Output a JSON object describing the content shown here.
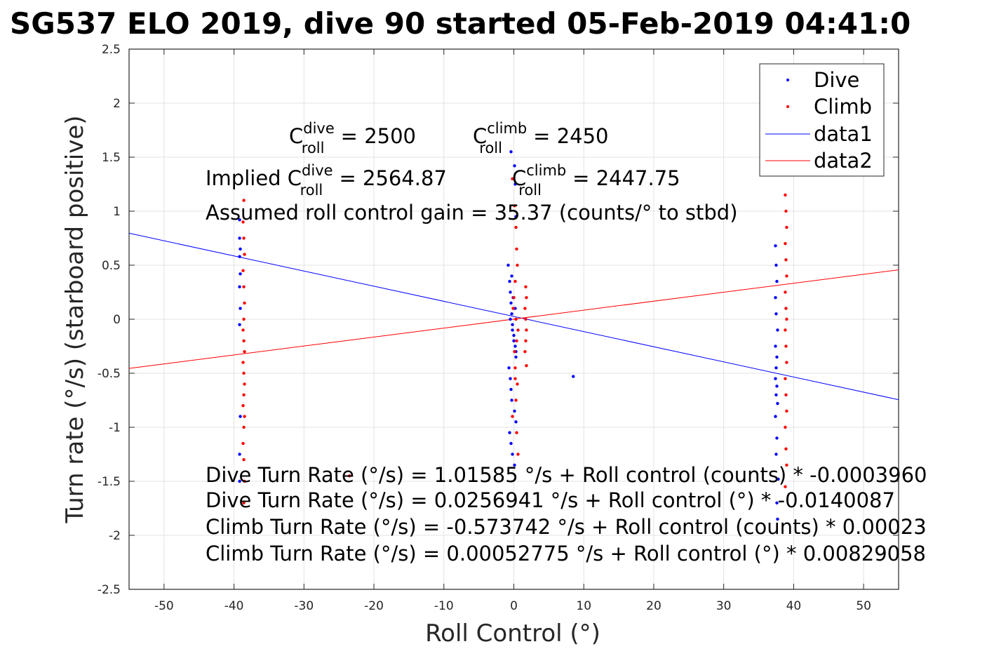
{
  "chart_data": {
    "type": "scatter",
    "title": "SG537 ELO 2019, dive 90 started 05-Feb-2019 04:41:0",
    "xlabel": "Roll Control (°)",
    "ylabel": "Turn rate (°/s) (starboard positive)",
    "xlim": [
      -55,
      55
    ],
    "ylim": [
      -2.5,
      2.5
    ],
    "x_ticks": [
      -50,
      -40,
      -30,
      -20,
      -10,
      0,
      10,
      20,
      30,
      40,
      50
    ],
    "y_ticks": [
      -2.5,
      -2,
      -1.5,
      -1,
      -0.5,
      0,
      0.5,
      1,
      1.5,
      2,
      2.5
    ],
    "grid": true,
    "legend_position": "top-right",
    "legend": [
      "Dive",
      "Climb",
      "data1",
      "data2"
    ],
    "series": [
      {
        "name": "Dive",
        "kind": "points",
        "color": "#0000ff",
        "x": [
          -39.2,
          -39.2,
          -39.1,
          -39.2,
          -39.1,
          -39.2,
          -39.1,
          -39.2,
          -39.1,
          -39.2,
          -39.2,
          -0.8,
          -0.6,
          -0.5,
          -0.4,
          -0.3,
          -0.2,
          0.0,
          0.2,
          0.3,
          -0.7,
          -0.5,
          -0.4,
          -0.3,
          0.1,
          0.3,
          -0.6,
          -0.4,
          -0.2,
          0.1,
          -0.3,
          -0.1,
          0.2,
          -0.5,
          -0.2,
          0.0,
          0.3,
          -0.4,
          0.1,
          0.2,
          0.3,
          8.5,
          37.4,
          37.5,
          37.6,
          37.4,
          37.5,
          37.7,
          37.4,
          37.6,
          37.5,
          37.4,
          37.6,
          37.5,
          37.7,
          37.4,
          37.6,
          37.5,
          37.8,
          37.6,
          37.7
        ],
        "y": [
          0.92,
          0.75,
          0.65,
          0.58,
          0.42,
          0.3,
          0.1,
          -0.05,
          -0.9,
          -1.25,
          -1.5,
          0.5,
          0.35,
          0.25,
          0.15,
          0.05,
          -0.05,
          -0.15,
          -0.25,
          -0.35,
          -0.45,
          -0.55,
          -0.65,
          -0.75,
          -0.85,
          -0.95,
          -1.05,
          -1.15,
          -1.25,
          -1.35,
          0.4,
          0.2,
          0.1,
          0.0,
          -0.1,
          -0.2,
          -0.3,
          1.55,
          1.42,
          1.25,
          0.95,
          -0.53,
          0.68,
          0.5,
          0.35,
          0.2,
          0.05,
          -0.1,
          -0.25,
          -0.35,
          -0.45,
          -0.55,
          -0.62,
          -0.7,
          -0.78,
          -0.9,
          -1.1,
          -1.25,
          -1.48,
          -1.7,
          -1.85
        ]
      },
      {
        "name": "Climb",
        "kind": "points",
        "color": "#ff0000",
        "x": [
          -38.6,
          -38.7,
          -38.6,
          -38.5,
          -38.7,
          -38.6,
          -38.5,
          -38.6,
          -38.7,
          -38.6,
          -38.5,
          -38.7,
          -38.6,
          -38.5,
          -38.6,
          -38.7,
          -38.5,
          -38.6,
          -38.7,
          -38.6,
          -38.5,
          -38.6,
          -23.5,
          -0.2,
          0.1,
          0.3,
          0.4,
          0.5,
          0.2,
          0.0,
          -0.1,
          0.3,
          0.6,
          0.4,
          0.1,
          0.2,
          0.5,
          0.3,
          -0.2,
          0.4,
          0.6,
          0.2,
          1.7,
          1.8,
          1.6,
          1.7,
          1.8,
          1.7,
          1.6,
          1.8,
          38.8,
          38.9,
          39.0,
          38.8,
          38.9,
          39.0,
          38.8,
          38.9,
          39.0,
          38.8,
          38.9,
          39.0,
          38.8,
          38.9,
          39.0,
          38.8,
          38.9,
          39.0,
          38.8
        ],
        "y": [
          1.1,
          0.9,
          0.75,
          0.6,
          0.45,
          0.3,
          0.15,
          0.0,
          -0.1,
          -0.2,
          -0.3,
          -0.4,
          -0.5,
          -0.6,
          -0.7,
          -0.8,
          -0.9,
          -1.0,
          -1.15,
          -1.3,
          -1.5,
          -1.7,
          -1.45,
          1.3,
          1.05,
          0.85,
          0.65,
          0.5,
          0.35,
          0.2,
          0.1,
          0.0,
          -0.1,
          -0.2,
          -0.3,
          -0.45,
          -0.6,
          -0.75,
          -0.9,
          -1.05,
          -1.25,
          -0.55,
          0.3,
          0.2,
          0.1,
          0.0,
          -0.1,
          -0.2,
          -0.3,
          -0.43,
          1.15,
          1.0,
          0.85,
          0.7,
          0.55,
          0.4,
          0.25,
          0.1,
          0.0,
          -0.1,
          -0.25,
          -0.4,
          -0.55,
          -0.7,
          -0.85,
          -1.0,
          -1.2,
          -1.35,
          -1.55
        ]
      },
      {
        "name": "data1",
        "kind": "line",
        "color": "#0000ff",
        "x": [
          -55,
          55
        ],
        "y": [
          0.796,
          -0.745
        ]
      },
      {
        "name": "data2",
        "kind": "line",
        "color": "#ff0000",
        "x": [
          -55,
          55
        ],
        "y": [
          -0.455,
          0.457
        ]
      }
    ],
    "annotations": {
      "dive_label_pre": "C",
      "dive_sup": "dive",
      "dive_sub": "roll",
      "dive_value": " = 2500",
      "climb_label_pre": "C",
      "climb_sup": "climb",
      "climb_sub": "roll",
      "climb_value": " = 2450",
      "implied_prefix": "Implied C",
      "implied_dive_value": " = 2564.87",
      "implied_climb_pre": "C",
      "implied_climb_value": " = 2447.75",
      "gain": "Assumed roll control gain = 35.37 (counts/° to stbd)",
      "eq1": "Dive Turn Rate (°/s) = 1.01585 °/s + Roll control (counts) * -0.0003960",
      "eq2": "Dive Turn Rate (°/s) = 0.0256941 °/s + Roll control (°) * -0.0140087",
      "eq3": "Climb Turn Rate (°/s) = -0.573742 °/s + Roll control (counts) * 0.00023",
      "eq4": "Climb Turn Rate (°/s) = 0.00052775 °/s + Roll control (°) * 0.00829058"
    }
  }
}
